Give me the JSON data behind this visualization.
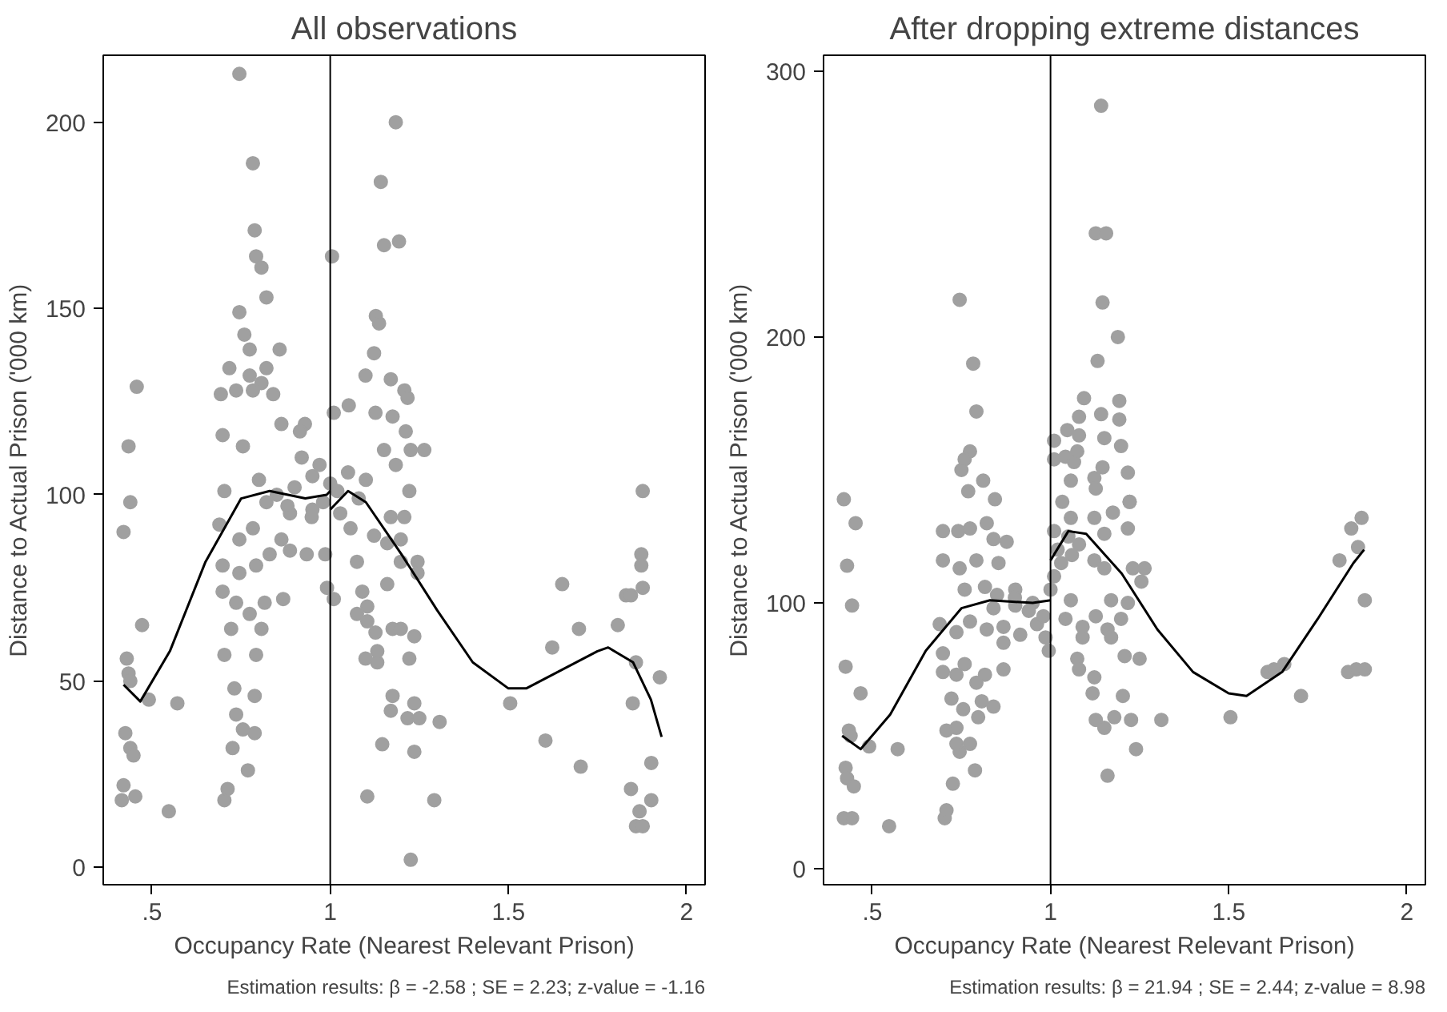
{
  "chart_data": [
    {
      "type": "scatter",
      "title": "All observations",
      "xlabel": "Occupancy Rate (Nearest Relevant Prison)",
      "ylabel": "Distance to Actual Prison ('000 km)",
      "annotations": [
        "Estimation results: β = -2.58 ; SE = 2.23; z-value = -1.16"
      ],
      "xlim": [
        0.363,
        2.052
      ],
      "ylim": [
        -4.7,
        218
      ],
      "xticks": [
        {
          "value": 0.5,
          "label": ".5"
        },
        1,
        1.5,
        2
      ],
      "yticks": [
        0,
        50,
        100,
        150,
        200
      ],
      "grid": false,
      "ref_lines": [
        {
          "axis": "x",
          "value": 1,
          "label": null,
          "color": "#000000"
        }
      ],
      "series": [
        {
          "marker": "circle",
          "color": "#a0a0a0",
          "x": [
            0.745,
            1.184,
            0.783,
            1.142,
            0.788,
            1.193,
            1.151,
            1.005,
            0.792,
            0.807,
            0.821,
            0.745,
            1.128,
            1.137,
            0.759,
            0.774,
            0.858,
            1.123,
            0.717,
            0.821,
            0.774,
            1.099,
            1.17,
            0.457,
            0.807,
            0.736,
            0.783,
            1.208,
            0.693,
            1.217,
            0.84,
            0.434,
            0.698,
            0.755,
            1.052,
            1.01,
            1.127,
            1.175,
            0.929,
            0.863,
            1.212,
            1.264,
            1.226,
            1.184,
            0.915,
            1.151,
            0.703,
            0.439,
            1.877,
            0.42,
            0.429,
            0.434,
            0.439,
            0.472,
            0.491,
            0.571,
            0.425,
            0.439,
            0.448,
            0.42,
            0.415,
            0.453,
            0.547,
            0.703,
            0.712,
            0.769,
            0.726,
            0.755,
            0.788,
            0.731,
            0.788,
            0.736,
            0.703,
            0.722,
            0.792,
            0.807,
            0.698,
            0.736,
            0.774,
            0.816,
            0.868,
            0.698,
            0.745,
            0.792,
            0.83,
            0.689,
            0.745,
            0.783,
            0.863,
            0.887,
            0.934,
            0.821,
            0.887,
            0.948,
            0.986,
            0.991,
            1.01,
            1.028,
            1.057,
            1.075,
            1.09,
            1.104,
            1.075,
            1.104,
            1.127,
            1.099,
            1.132,
            1.132,
            1.123,
            1.16,
            1.16,
            1.198,
            1.17,
            1.208,
            1.222,
            1.245,
            1.245,
            1.198,
            1.175,
            1.198,
            1.236,
            1.222,
            1.175,
            1.17,
            1.146,
            1.104,
            1.217,
            1.236,
            1.25,
            1.236,
            1.307,
            1.292,
            1.226,
            1.505,
            1.604,
            1.651,
            1.623,
            1.698,
            1.703,
            1.807,
            1.83,
            1.844,
            1.858,
            1.849,
            1.844,
            1.868,
            1.858,
            1.877,
            1.901,
            1.901,
            1.925,
            1.873,
            1.873,
            1.877,
            0.85,
            0.9,
            0.95,
            0.98,
            1.0,
            1.02,
            1.05,
            0.92,
            0.97,
            1.08,
            0.88,
            1.1,
            0.8,
            0.95
          ],
          "values": [
            213,
            200,
            189,
            184,
            171,
            168,
            167,
            164,
            164,
            161,
            153,
            149,
            148,
            146,
            143,
            139,
            139,
            138,
            134,
            134,
            132,
            132,
            131,
            129,
            130,
            128,
            128,
            128,
            127,
            126,
            127,
            113,
            116,
            113,
            124,
            122,
            122,
            121,
            119,
            119,
            117,
            112,
            112,
            108,
            117,
            112,
            101,
            98,
            101,
            90,
            56,
            52,
            50,
            65,
            45,
            44,
            36,
            32,
            30,
            22,
            18,
            19,
            15,
            18,
            21,
            26,
            32,
            37,
            36,
            48,
            46,
            41,
            57,
            64,
            57,
            64,
            74,
            71,
            68,
            71,
            72,
            81,
            79,
            81,
            84,
            92,
            88,
            91,
            88,
            85,
            84,
            98,
            95,
            94,
            84,
            75,
            72,
            95,
            91,
            82,
            74,
            70,
            68,
            66,
            63,
            56,
            55,
            58,
            89,
            87,
            76,
            88,
            94,
            94,
            101,
            82,
            79,
            82,
            64,
            64,
            62,
            56,
            46,
            42,
            33,
            19,
            40,
            44,
            40,
            31,
            39,
            18,
            2,
            44,
            34,
            76,
            59,
            64,
            27,
            65,
            73,
            73,
            55,
            44,
            21,
            15,
            11,
            11,
            18,
            28,
            51,
            84,
            81,
            75,
            100,
            102,
            105,
            98,
            103,
            101,
            106,
            110,
            108,
            99,
            97,
            104,
            104,
            96
          ]
        },
        {
          "type": "line",
          "color": "#000000",
          "x": [
            0.42,
            0.467,
            0.55,
            0.65,
            0.75,
            0.83,
            0.93,
            0.99,
            1.0
          ],
          "values": [
            49,
            44.5,
            58,
            82,
            99,
            101,
            99,
            100,
            101
          ]
        },
        {
          "type": "line",
          "color": "#000000",
          "x": [
            1.0,
            1.05,
            1.1,
            1.2,
            1.3,
            1.4,
            1.5,
            1.55,
            1.65,
            1.75,
            1.78,
            1.85,
            1.9,
            1.93
          ],
          "values": [
            96,
            101,
            98,
            84,
            69,
            55,
            48,
            48,
            53,
            58,
            59,
            55,
            45,
            35
          ]
        }
      ]
    },
    {
      "type": "scatter",
      "title": "After dropping extreme distances",
      "xlabel": "Occupancy Rate (Nearest Relevant Prison)",
      "ylabel": "Distance to Actual Prison ('000 km)",
      "annotations": [
        "Estimation results: β = 21.94 ; SE = 2.44; z-value = 8.98"
      ],
      "xlim": [
        0.363,
        2.052
      ],
      "ylim": [
        -6,
        306
      ],
      "xticks": [
        {
          "value": 0.5,
          "label": ".5"
        },
        1,
        1.5,
        2
      ],
      "yticks": [
        0,
        100,
        200,
        300
      ],
      "grid": false,
      "ref_lines": [
        {
          "axis": "x",
          "value": 1,
          "label": null,
          "color": "#000000"
        }
      ],
      "series": [
        {
          "marker": "circle",
          "color": "#a0a0a0",
          "x": [
            1.142,
            1.127,
            1.156,
            0.745,
            1.146,
            1.189,
            0.783,
            1.132,
            0.792,
            1.094,
            1.193,
            1.142,
            1.08,
            1.193,
            0.774,
            0.759,
            0.75,
            0.811,
            0.769,
            0.844,
            0.42,
            1.01,
            1.047,
            1.08,
            1.151,
            1.198,
            1.075,
            1.01,
            1.042,
            1.066,
            1.217,
            1.123,
            1.146,
            1.057,
            1.127,
            1.222,
            0.453,
            0.429,
            0.443,
            0.425,
            0.467,
            0.434,
            0.439,
            0.491,
            0.571,
            0.425,
            0.429,
            0.448,
            0.42,
            0.443,
            0.547,
            0.703,
            0.708,
            0.726,
            0.788,
            0.745,
            0.736,
            0.774,
            0.708,
            0.736,
            0.84,
            0.797,
            0.807,
            0.755,
            0.722,
            0.698,
            0.698,
            0.736,
            0.759,
            0.792,
            0.816,
            0.868,
            0.689,
            0.736,
            0.774,
            0.821,
            0.868,
            0.915,
            0.962,
            0.986,
            0.995,
            0.698,
            0.741,
            0.774,
            0.821,
            0.877,
            0.84,
            0.698,
            0.745,
            0.792,
            0.854,
            0.759,
            0.816,
            0.901,
            0.84,
            0.901,
            0.939,
            0.868,
            1.01,
            1.033,
            1.057,
            1.08,
            1.123,
            1.151,
            1.175,
            1.217,
            1.222,
            1.264,
            1.231,
            1.255,
            1.17,
            1.217,
            1.123,
            1.151,
            1.057,
            1.042,
            1.09,
            1.127,
            1.16,
            1.17,
            1.198,
            1.09,
            1.208,
            1.25,
            1.075,
            1.08,
            1.123,
            1.118,
            1.203,
            1.127,
            1.151,
            1.179,
            1.226,
            1.24,
            1.311,
            1.16,
            1.505,
            1.609,
            1.627,
            1.656,
            1.703,
            1.811,
            1.844,
            1.873,
            1.863,
            1.882,
            1.835,
            1.858,
            1.882,
            1.01,
            1.02,
            1.03,
            1.05,
            1.0,
            1.06,
            0.95,
            0.9,
            0.85,
            0.98
          ],
          "values": [
            287,
            239,
            239,
            214,
            213,
            200,
            190,
            191,
            172,
            177,
            176,
            171,
            170,
            169,
            157,
            154,
            150,
            146,
            142,
            139,
            139,
            161,
            165,
            163,
            162,
            159,
            157,
            154,
            155,
            153,
            149,
            147,
            151,
            146,
            143,
            138,
            130,
            114,
            99,
            76,
            66,
            52,
            50,
            46,
            45,
            38,
            34,
            31,
            19,
            19,
            16,
            19,
            22,
            32,
            37,
            44,
            47,
            47,
            52,
            53,
            61,
            57,
            63,
            60,
            64,
            81,
            74,
            73,
            77,
            70,
            73,
            75,
            92,
            89,
            93,
            90,
            85,
            88,
            92,
            87,
            82,
            127,
            127,
            128,
            130,
            123,
            124,
            116,
            113,
            116,
            115,
            105,
            106,
            105,
            98,
            99,
            97,
            91,
            127,
            138,
            132,
            122,
            132,
            126,
            134,
            128,
            138,
            113,
            113,
            108,
            101,
            100,
            116,
            113,
            101,
            94,
            91,
            95,
            90,
            87,
            94,
            87,
            80,
            79,
            79,
            75,
            72,
            66,
            65,
            56,
            53,
            57,
            56,
            45,
            56,
            35,
            57,
            74,
            75,
            77,
            65,
            116,
            128,
            132,
            121,
            101,
            74,
            75,
            75,
            110,
            120,
            115,
            125,
            105,
            118,
            100,
            102,
            103,
            95
          ]
        },
        {
          "type": "line",
          "color": "#000000",
          "x": [
            0.415,
            0.467,
            0.55,
            0.65,
            0.75,
            0.83,
            0.95,
            1.0
          ],
          "values": [
            50,
            45,
            58,
            82,
            98,
            101,
            100,
            101
          ]
        },
        {
          "type": "line",
          "color": "#000000",
          "x": [
            1.0,
            1.05,
            1.1,
            1.2,
            1.3,
            1.4,
            1.5,
            1.55,
            1.65,
            1.75,
            1.85,
            1.88
          ],
          "values": [
            116,
            127,
            126,
            111,
            90,
            74,
            66,
            65,
            74,
            94,
            115,
            120
          ]
        }
      ]
    }
  ]
}
